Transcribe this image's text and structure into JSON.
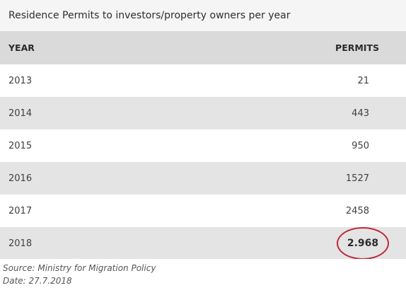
{
  "title": "Residence Permits to investors/property owners per year",
  "table": {
    "headers": {
      "year": "YEAR",
      "permits": "PERMITS"
    },
    "rows": [
      {
        "year": "2013",
        "permits": "21"
      },
      {
        "year": "2014",
        "permits": "443"
      },
      {
        "year": "2015",
        "permits": "950"
      },
      {
        "year": "2016",
        "permits": "1527"
      },
      {
        "year": "2017",
        "permits": "2458"
      },
      {
        "year": "2018",
        "permits": "2.968"
      }
    ]
  },
  "footer": {
    "source": "Source: Ministry for Migration Policy",
    "date": "Date: 27.7.2018"
  },
  "colors": {
    "highlight_circle": "#c0273a",
    "header_bg": "#dadada",
    "alt_row_bg": "#e4e4e4"
  },
  "chart_data": {
    "type": "table",
    "title": "Residence Permits to investors/property owners per year",
    "columns": [
      "YEAR",
      "PERMITS"
    ],
    "rows": [
      [
        "2013",
        "21"
      ],
      [
        "2014",
        "443"
      ],
      [
        "2015",
        "950"
      ],
      [
        "2016",
        "1527"
      ],
      [
        "2017",
        "2458"
      ],
      [
        "2018",
        "2.968"
      ]
    ],
    "highlighted": {
      "year": "2018",
      "permits": "2.968"
    }
  }
}
